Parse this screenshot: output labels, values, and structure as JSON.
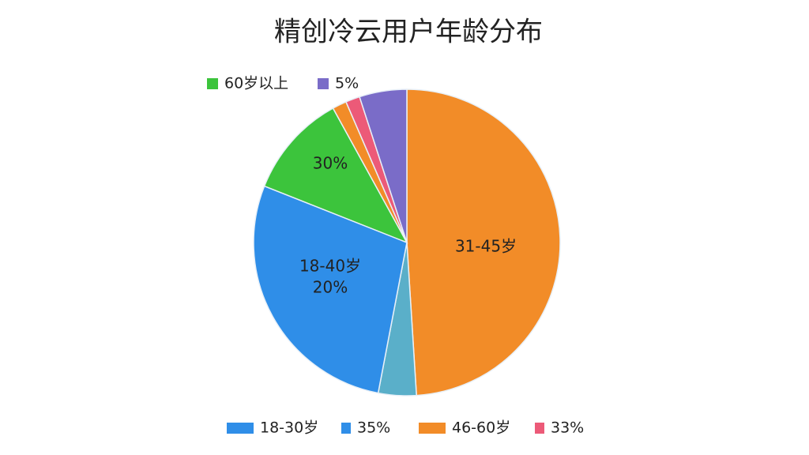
{
  "chart_data": {
    "type": "pie",
    "title": "精创冷云用户年龄分布",
    "values": [
      49,
      4,
      28,
      11,
      1.5,
      1.5,
      5
    ],
    "colors": [
      "#f28c28",
      "#5aafc9",
      "#2f8ee8",
      "#3cc43c",
      "#f28c28",
      "#ec5a78",
      "#7a6cc8"
    ],
    "annotations": [
      "30%",
      "31-45岁",
      "18-40岁",
      "20%"
    ],
    "legend": [
      {
        "label": "60岁以上",
        "color": "#3cc43c"
      },
      {
        "label": "5%",
        "color": "#7a6cc8"
      },
      {
        "label": "18-30岁",
        "color": "#2f8ee8"
      },
      {
        "label": "35%",
        "color": "#2f8ee8"
      },
      {
        "label": "46-60岁",
        "color": "#f28c28"
      },
      {
        "label": "33%",
        "color": "#ec5a78"
      }
    ]
  }
}
